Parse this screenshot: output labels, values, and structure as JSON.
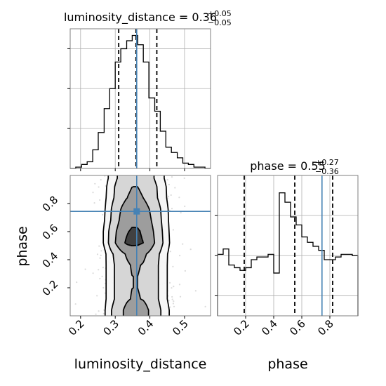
{
  "chart_data": [
    {
      "type": "histogram",
      "panel": "luminosity_distance marginal",
      "title": {
        "main": "luminosity_distance = 0.36",
        "sup": "+0.05",
        "sub": "−0.05"
      },
      "xlim": [
        0.17,
        0.575
      ],
      "ylim": [
        0,
        1.05
      ],
      "bin_edges": [
        0.17,
        0.186,
        0.203,
        0.219,
        0.235,
        0.251,
        0.268,
        0.284,
        0.3,
        0.316,
        0.333,
        0.349,
        0.365,
        0.381,
        0.397,
        0.414,
        0.43,
        0.446,
        0.462,
        0.479,
        0.495,
        0.511,
        0.527,
        0.543,
        0.559,
        0.575
      ],
      "densities": [
        0.0,
        0.01,
        0.03,
        0.05,
        0.14,
        0.27,
        0.45,
        0.6,
        0.8,
        0.9,
        0.96,
        1.0,
        0.93,
        0.8,
        0.53,
        0.43,
        0.28,
        0.16,
        0.12,
        0.08,
        0.04,
        0.03,
        0.01,
        0.01,
        0.0
      ],
      "quantiles": [
        0.31,
        0.36,
        0.42
      ],
      "truth": 0.362
    },
    {
      "type": "histogram",
      "panel": "phase marginal",
      "title": {
        "main": "phase = 0.55",
        "sup": "+0.27",
        "sub": "−0.36"
      },
      "xlim": [
        0.0,
        1.0
      ],
      "ylim": [
        0,
        1.05
      ],
      "bin_edges": [
        0.0,
        0.04,
        0.08,
        0.12,
        0.16,
        0.2,
        0.24,
        0.28,
        0.32,
        0.36,
        0.4,
        0.44,
        0.48,
        0.52,
        0.56,
        0.6,
        0.64,
        0.68,
        0.72,
        0.76,
        0.8,
        0.84,
        0.88,
        0.92,
        0.96,
        1.0
      ],
      "densities": [
        0.46,
        0.5,
        0.38,
        0.36,
        0.34,
        0.36,
        0.42,
        0.44,
        0.44,
        0.46,
        0.32,
        0.92,
        0.85,
        0.74,
        0.68,
        0.59,
        0.55,
        0.52,
        0.49,
        0.42,
        0.42,
        0.44,
        0.46,
        0.46,
        0.45
      ],
      "quantiles": [
        0.19,
        0.55,
        0.82
      ],
      "truth": 0.744,
      "xticks": [
        "0.2",
        "0.4",
        "0.6",
        "0.8"
      ],
      "xlabel": "phase"
    },
    {
      "type": "2d-density-contour",
      "panel": "joint phase vs luminosity_distance",
      "xlim": [
        0.17,
        0.575
      ],
      "ylim": [
        0.0,
        1.0
      ],
      "xticks": [
        "0.2",
        "0.3",
        "0.4",
        "0.5"
      ],
      "yticks": [
        "0.2",
        "0.4",
        "0.6",
        "0.8"
      ],
      "xlabel": "luminosity_distance",
      "ylabel": "phase",
      "truth": {
        "x": 0.362,
        "y": 0.744
      },
      "columns": [
        0.256,
        0.271,
        0.287,
        0.303,
        0.318,
        0.334,
        0.349,
        0.365,
        0.381,
        0.396,
        0.412,
        0.427,
        0.443,
        0.459,
        0.474
      ],
      "rows": [
        0.04,
        0.12,
        0.2,
        0.28,
        0.36,
        0.44,
        0.52,
        0.6,
        0.68,
        0.76,
        0.84,
        0.92,
        0.98
      ],
      "density_rows": [
        [
          0.04,
          0.12,
          0.28,
          0.42,
          0.55,
          0.7,
          0.8,
          0.82,
          0.74,
          0.6,
          0.46,
          0.34,
          0.2,
          0.1,
          0.03
        ],
        [
          0.03,
          0.1,
          0.22,
          0.34,
          0.46,
          0.56,
          0.62,
          0.62,
          0.58,
          0.5,
          0.4,
          0.28,
          0.16,
          0.07,
          0.02
        ],
        [
          0.03,
          0.1,
          0.22,
          0.34,
          0.46,
          0.56,
          0.6,
          0.6,
          0.56,
          0.5,
          0.4,
          0.28,
          0.16,
          0.07,
          0.02
        ],
        [
          0.03,
          0.1,
          0.22,
          0.34,
          0.46,
          0.56,
          0.6,
          0.6,
          0.56,
          0.5,
          0.4,
          0.28,
          0.16,
          0.07,
          0.02
        ],
        [
          0.03,
          0.1,
          0.22,
          0.34,
          0.46,
          0.56,
          0.62,
          0.62,
          0.58,
          0.5,
          0.4,
          0.28,
          0.16,
          0.07,
          0.02
        ],
        [
          0.03,
          0.1,
          0.24,
          0.38,
          0.52,
          0.64,
          0.7,
          0.7,
          0.66,
          0.56,
          0.44,
          0.3,
          0.17,
          0.07,
          0.02
        ],
        [
          0.05,
          0.16,
          0.4,
          0.64,
          0.84,
          0.97,
          1.0,
          0.98,
          0.92,
          0.8,
          0.62,
          0.42,
          0.24,
          0.1,
          0.03
        ],
        [
          0.05,
          0.16,
          0.38,
          0.6,
          0.78,
          0.9,
          0.96,
          0.95,
          0.88,
          0.76,
          0.58,
          0.4,
          0.22,
          0.09,
          0.03
        ],
        [
          0.04,
          0.13,
          0.3,
          0.5,
          0.68,
          0.8,
          0.86,
          0.86,
          0.8,
          0.68,
          0.52,
          0.36,
          0.2,
          0.08,
          0.02
        ],
        [
          0.04,
          0.12,
          0.28,
          0.46,
          0.62,
          0.74,
          0.8,
          0.8,
          0.74,
          0.62,
          0.48,
          0.34,
          0.18,
          0.08,
          0.02
        ],
        [
          0.03,
          0.1,
          0.22,
          0.36,
          0.5,
          0.6,
          0.64,
          0.64,
          0.6,
          0.5,
          0.38,
          0.26,
          0.15,
          0.06,
          0.02
        ],
        [
          0.03,
          0.09,
          0.2,
          0.34,
          0.46,
          0.56,
          0.6,
          0.6,
          0.56,
          0.48,
          0.36,
          0.25,
          0.14,
          0.06,
          0.02
        ],
        [
          0.02,
          0.07,
          0.16,
          0.28,
          0.38,
          0.46,
          0.5,
          0.5,
          0.46,
          0.4,
          0.3,
          0.2,
          0.11,
          0.05,
          0.01
        ]
      ],
      "contour_levels": [
        0.12,
        0.3,
        0.6,
        0.92
      ],
      "contour_color": "#000000",
      "fill_shades": [
        "#f5f5f5",
        "#d4d4d4",
        "#9a9a9a",
        "#3c3c3c"
      ],
      "scatter_color": "#bdbdbd"
    }
  ],
  "colors": {
    "truth": "#4682b4",
    "quantile": "#000000",
    "grid": "#b0b0b0",
    "hist": "#000000"
  }
}
